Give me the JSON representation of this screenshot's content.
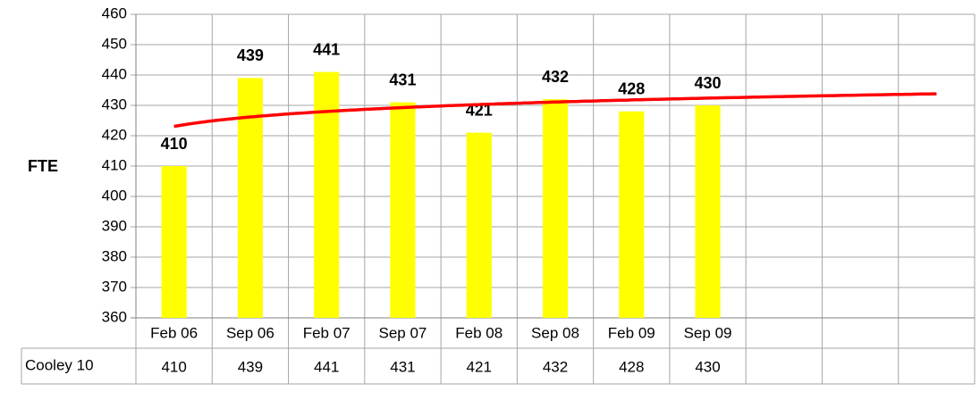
{
  "chart_data": {
    "type": "bar",
    "y_label": "FTE",
    "categories": [
      "Feb 06",
      "Sep 06",
      "Feb 07",
      "Sep 07",
      "Feb 08",
      "Sep 08",
      "Feb 09",
      "Sep 09",
      null,
      null,
      null
    ],
    "series": [
      {
        "name": "Cooley 10",
        "color": "#ffff00",
        "values": [
          410,
          439,
          441,
          431,
          421,
          432,
          428,
          430,
          null,
          null,
          null
        ]
      }
    ],
    "trendline": {
      "type": "logarithmic",
      "color": "#ff0000"
    },
    "ylim": [
      360,
      460
    ],
    "yticks": [
      360,
      370,
      380,
      390,
      400,
      410,
      420,
      430,
      440,
      450,
      460
    ],
    "grid": true,
    "data_table": true
  }
}
